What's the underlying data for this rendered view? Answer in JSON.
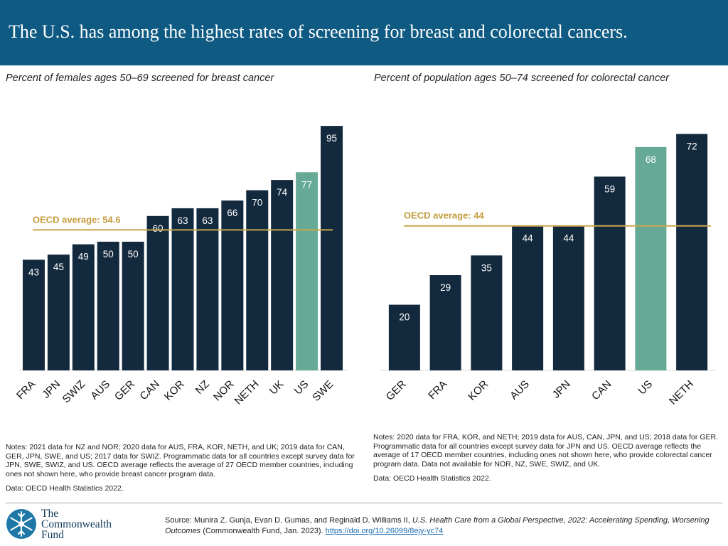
{
  "title": "The U.S. has among the highest rates of screening for breast and colorectal cancers.",
  "colors": {
    "header": "#0e5a83",
    "bar": "#13293d",
    "highlight": "#66a996",
    "average_line": "#c9a64a",
    "average_text": "#c39b3a"
  },
  "chart_data": [
    {
      "type": "bar",
      "title": "Percent of females ages 50–69 screened for breast cancer",
      "categories": [
        "FRA",
        "JPN",
        "SWIZ",
        "AUS",
        "GER",
        "CAN",
        "KOR",
        "NZ",
        "NOR",
        "NETH",
        "UK",
        "US",
        "SWE"
      ],
      "values": [
        43,
        45,
        49,
        50,
        50,
        60,
        63,
        63,
        66,
        70,
        74,
        77,
        95
      ],
      "highlight": "US",
      "ylim": [
        0,
        100
      ],
      "reference_line": {
        "label": "OECD average: 54.6",
        "value": 54.6
      }
    },
    {
      "type": "bar",
      "title": "Percent of population ages 50–74 screened for colorectal cancer",
      "categories": [
        "GER",
        "FRA",
        "KOR",
        "AUS",
        "JPN",
        "CAN",
        "US",
        "NETH"
      ],
      "values": [
        20,
        29,
        35,
        44,
        44,
        59,
        68,
        72
      ],
      "highlight": "US",
      "ylim": [
        0,
        100
      ],
      "reference_line": {
        "label": "OECD average: 44",
        "value": 44
      }
    }
  ],
  "notes_left": {
    "text": "Notes: 2021 data for NZ and NOR; 2020 data for AUS, FRA, KOR, NETH, and UK; 2019 data for CAN, GER, JPN, SWE, and US; 2017 data for SWIZ. Programmatic data for all countries except survey data for JPN, SWE, SWIZ, and US. OECD average reflects the average of 27 OECD member countries, including ones not shown here, who provide breast cancer program data.",
    "data": "Data: OECD Health Statistics 2022."
  },
  "notes_right": {
    "text": "Notes: 2020 data for FRA, KOR, and NETH; 2019 data for AUS, CAN, JPN, and US; 2018 data for GER. Programmatic data for all countries except survey data for JPN and US. OECD average reflects the average of 17 OECD member countries, including ones not shown here, who provide colorectal cancer program data. Data not available for NOR, NZ, SWE, SWIZ, and UK.",
    "data": "Data: OECD Health Statistics 2022."
  },
  "logo": {
    "line1": "The",
    "line2": "Commonwealth",
    "line3": "Fund"
  },
  "source": {
    "prefix": "Source: Munira Z. Gunja, Evan D. Gumas, and Reginald D. Williams II, ",
    "title": "U.S. Health Care from a Global Perspective, 2022: Accelerating Spending, Worsening Outcomes",
    "suffix": " (Commonwealth Fund, Jan. 2023). ",
    "link": "https://doi.org/10.26099/8ejy-yc74"
  }
}
